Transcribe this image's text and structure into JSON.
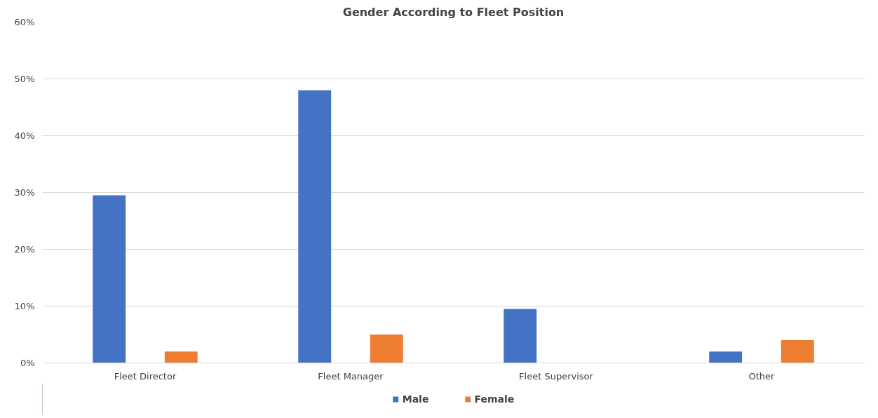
{
  "chart_data": {
    "type": "bar",
    "title": "Gender According to Fleet Position",
    "categories": [
      "Fleet Director",
      "Fleet Manager",
      "Fleet Supervisor",
      "Other"
    ],
    "series": [
      {
        "name": "Male",
        "color": "#4472c4",
        "values": [
          29.5,
          48,
          9.5,
          2
        ]
      },
      {
        "name": "Female",
        "color": "#ed7d31",
        "values": [
          2,
          5,
          0,
          4
        ]
      }
    ],
    "ylim": [
      0,
      60
    ],
    "yticks": [
      {
        "value": 0,
        "label": "0%"
      },
      {
        "value": 10,
        "label": "10%"
      },
      {
        "value": 20,
        "label": "20%"
      },
      {
        "value": 30,
        "label": "30%"
      },
      {
        "value": 40,
        "label": "40%"
      },
      {
        "value": 50,
        "label": "50%"
      },
      {
        "value": 60,
        "label": "60%"
      }
    ],
    "grid": "y",
    "legend": "bottom"
  }
}
